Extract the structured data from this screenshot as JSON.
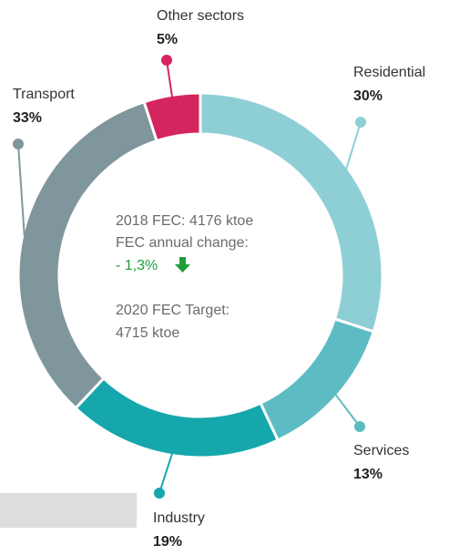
{
  "chart_data": {
    "type": "pie",
    "donut": true,
    "categories": [
      "Residential",
      "Services",
      "Industry",
      "Transport",
      "Other sectors"
    ],
    "values": [
      30,
      13,
      19,
      33,
      5
    ],
    "value_labels": [
      "30%",
      "13%",
      "19%",
      "33%",
      "5%"
    ],
    "colors": [
      "#8ecfd5",
      "#5dbcc3",
      "#15a7ac",
      "#80969d",
      "#d5255e"
    ],
    "annotations": [
      "2018 FEC: 4176 ktoe",
      "FEC annual change:",
      "- 1,3%",
      "2020 FEC Target:",
      "4715 ktoe"
    ],
    "annotation_color_change": "#1e9e3a"
  }
}
